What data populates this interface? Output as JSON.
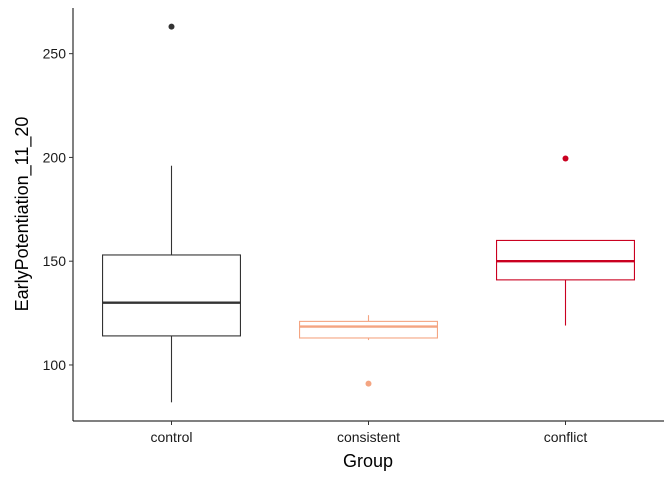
{
  "chart_data": {
    "type": "boxplot",
    "xlabel": "Group",
    "ylabel": "EarlyPotentiation_11_20",
    "ylim": [
      73,
      272
    ],
    "yticks": [
      100,
      150,
      200,
      250
    ],
    "categories": [
      "control",
      "consistent",
      "conflict"
    ],
    "colors": [
      "#333333",
      "#f4a582",
      "#ca0020"
    ],
    "boxes": [
      {
        "whisker_low": 82,
        "q1": 114,
        "median": 130,
        "q3": 153,
        "whisker_high": 196,
        "outliers": [
          263
        ]
      },
      {
        "whisker_low": 112,
        "q1": 113,
        "median": 118.5,
        "q3": 121,
        "whisker_high": 124,
        "outliers": [
          91
        ]
      },
      {
        "whisker_low": 119,
        "q1": 141,
        "median": 150,
        "q3": 160,
        "whisker_high": 160,
        "outliers": [
          199.5
        ]
      }
    ],
    "grid": false,
    "legend": "none"
  }
}
